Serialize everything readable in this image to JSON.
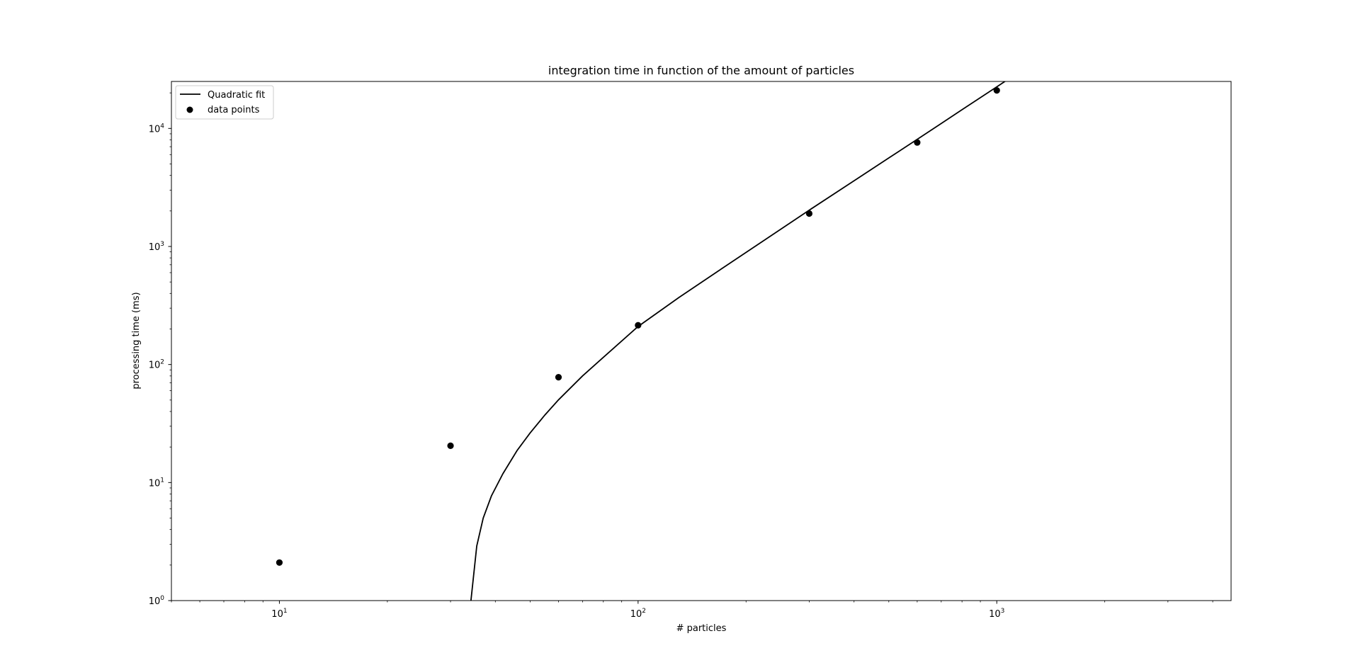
{
  "chart_data": {
    "type": "scatter",
    "title": "integration time in function of the amount of particles",
    "xlabel": "# particles",
    "ylabel": "processing time (ms)",
    "xscale": "log",
    "yscale": "log",
    "xlim": [
      5,
      4500
    ],
    "ylim": [
      1,
      25000
    ],
    "grid": false,
    "legend_position": "upper-left",
    "x_ticks": [
      {
        "value": 10,
        "base": "10",
        "exp": "1"
      },
      {
        "value": 100,
        "base": "10",
        "exp": "2"
      },
      {
        "value": 1000,
        "base": "10",
        "exp": "3"
      }
    ],
    "y_ticks": [
      {
        "value": 1,
        "base": "10",
        "exp": "0"
      },
      {
        "value": 10,
        "base": "10",
        "exp": "1"
      },
      {
        "value": 100,
        "base": "10",
        "exp": "2"
      },
      {
        "value": 1000,
        "base": "10",
        "exp": "3"
      },
      {
        "value": 10000,
        "base": "10",
        "exp": "4"
      }
    ],
    "series": [
      {
        "name": "Quadratic fit",
        "kind": "line",
        "color": "#000000",
        "x": [
          34.2,
          35.5,
          37,
          39,
          42,
          46,
          50,
          55,
          60,
          70,
          80,
          100,
          130,
          170,
          220,
          300,
          400,
          500,
          600,
          700,
          800,
          1000,
          1090
        ],
        "y": [
          1.0,
          2.9,
          5.0,
          7.7,
          11.9,
          18.7,
          26.3,
          37.4,
          50.2,
          80,
          115,
          210,
          370,
          640,
          1080,
          2030,
          3600,
          5620,
          8080,
          11000,
          14400,
          22500,
          26800
        ]
      },
      {
        "name": "data points",
        "kind": "scatter",
        "color": "#000000",
        "x": [
          10,
          30,
          60,
          100,
          300,
          600,
          1000
        ],
        "y": [
          2.1,
          20.5,
          78,
          215,
          1900,
          7600,
          21000
        ]
      }
    ],
    "legend": [
      {
        "label": "Quadratic fit",
        "marker": "line"
      },
      {
        "label": "data points",
        "marker": "dot"
      }
    ]
  }
}
